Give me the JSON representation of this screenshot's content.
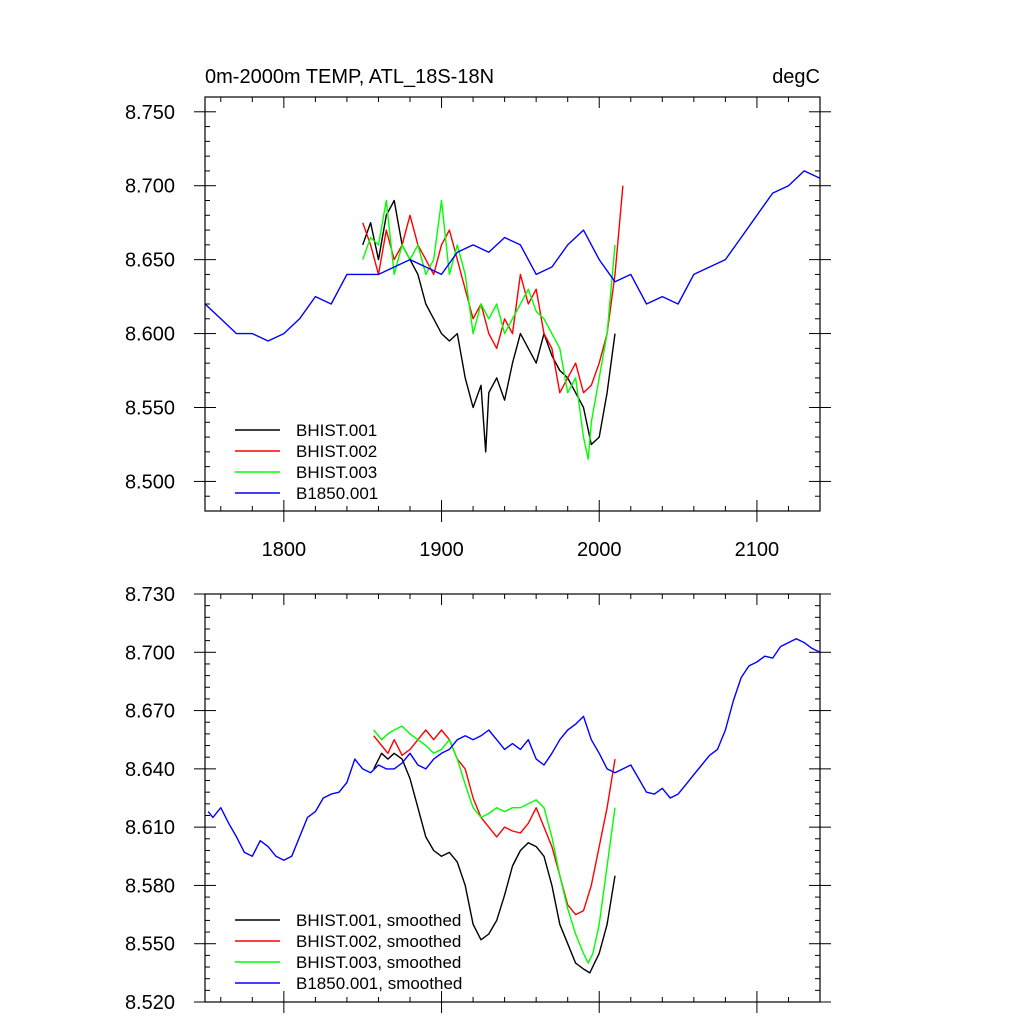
{
  "chart_data": [
    {
      "type": "line",
      "title": "0m-2000m TEMP, ATL_18S-18N",
      "units": "degC",
      "xlim": [
        1750,
        2140
      ],
      "ylim": [
        8.48,
        8.76
      ],
      "xticks": [
        1800,
        1900,
        2000,
        2100
      ],
      "xtick_labels": [
        "1800",
        "1900",
        "2000",
        "2100"
      ],
      "yticks": [
        8.5,
        8.55,
        8.6,
        8.65,
        8.7,
        8.75
      ],
      "ytick_labels": [
        "8.500",
        "8.550",
        "8.600",
        "8.650",
        "8.700",
        "8.750"
      ],
      "legend_position": "bottom-left",
      "series": [
        {
          "name": "BHIST.001",
          "color": "#000000",
          "x": [
            1850,
            1855,
            1860,
            1865,
            1870,
            1875,
            1880,
            1885,
            1890,
            1895,
            1900,
            1905,
            1910,
            1915,
            1920,
            1925,
            1928,
            1930,
            1935,
            1940,
            1945,
            1950,
            1955,
            1960,
            1965,
            1970,
            1975,
            1980,
            1985,
            1990,
            1995,
            2000,
            2005,
            2010
          ],
          "values": [
            8.66,
            8.675,
            8.65,
            8.68,
            8.69,
            8.66,
            8.65,
            8.64,
            8.62,
            8.61,
            8.6,
            8.595,
            8.6,
            8.57,
            8.55,
            8.565,
            8.52,
            8.56,
            8.57,
            8.555,
            8.58,
            8.6,
            8.59,
            8.58,
            8.6,
            8.585,
            8.575,
            8.57,
            8.56,
            8.55,
            8.525,
            8.53,
            8.56,
            8.6
          ]
        },
        {
          "name": "BHIST.002",
          "color": "#ff0000",
          "x": [
            1850,
            1855,
            1860,
            1865,
            1870,
            1875,
            1880,
            1885,
            1890,
            1895,
            1900,
            1905,
            1910,
            1915,
            1920,
            1925,
            1930,
            1935,
            1940,
            1945,
            1950,
            1955,
            1960,
            1965,
            1970,
            1975,
            1980,
            1985,
            1990,
            1995,
            2000,
            2005,
            2010,
            2015
          ],
          "values": [
            8.675,
            8.66,
            8.64,
            8.67,
            8.65,
            8.66,
            8.68,
            8.66,
            8.65,
            8.64,
            8.66,
            8.67,
            8.65,
            8.63,
            8.61,
            8.62,
            8.6,
            8.59,
            8.61,
            8.6,
            8.64,
            8.62,
            8.63,
            8.6,
            8.59,
            8.56,
            8.57,
            8.58,
            8.56,
            8.565,
            8.58,
            8.6,
            8.64,
            8.7
          ]
        },
        {
          "name": "BHIST.003",
          "color": "#00ff00",
          "x": [
            1850,
            1855,
            1860,
            1865,
            1870,
            1875,
            1880,
            1885,
            1890,
            1895,
            1900,
            1905,
            1910,
            1915,
            1920,
            1925,
            1930,
            1935,
            1940,
            1945,
            1950,
            1955,
            1960,
            1965,
            1970,
            1975,
            1980,
            1985,
            1990,
            1993,
            1995,
            2000,
            2005,
            2010
          ],
          "values": [
            8.65,
            8.665,
            8.66,
            8.69,
            8.64,
            8.66,
            8.65,
            8.66,
            8.64,
            8.65,
            8.69,
            8.64,
            8.66,
            8.64,
            8.6,
            8.62,
            8.61,
            8.62,
            8.6,
            8.61,
            8.62,
            8.63,
            8.615,
            8.61,
            8.6,
            8.59,
            8.56,
            8.57,
            8.53,
            8.515,
            8.54,
            8.57,
            8.6,
            8.66
          ]
        },
        {
          "name": "B1850.001",
          "color": "#0000ff",
          "x": [
            1750,
            1760,
            1770,
            1780,
            1790,
            1800,
            1810,
            1820,
            1830,
            1840,
            1850,
            1860,
            1870,
            1880,
            1890,
            1900,
            1910,
            1920,
            1930,
            1940,
            1950,
            1960,
            1970,
            1980,
            1990,
            2000,
            2010,
            2020,
            2030,
            2040,
            2050,
            2060,
            2070,
            2080,
            2090,
            2100,
            2110,
            2120,
            2130,
            2140
          ],
          "values": [
            8.62,
            8.61,
            8.6,
            8.6,
            8.595,
            8.6,
            8.61,
            8.625,
            8.62,
            8.64,
            8.64,
            8.64,
            8.645,
            8.65,
            8.645,
            8.64,
            8.655,
            8.66,
            8.655,
            8.665,
            8.66,
            8.64,
            8.645,
            8.66,
            8.67,
            8.65,
            8.635,
            8.64,
            8.62,
            8.625,
            8.62,
            8.64,
            8.645,
            8.65,
            8.665,
            8.68,
            8.695,
            8.7,
            8.71,
            8.705
          ]
        }
      ]
    },
    {
      "type": "line",
      "title": "",
      "xlim": [
        1750,
        2140
      ],
      "ylim": [
        8.52,
        8.73
      ],
      "xticks": [
        1800,
        1900,
        2000,
        2100
      ],
      "yticks": [
        8.52,
        8.55,
        8.58,
        8.61,
        8.64,
        8.67,
        8.7,
        8.73
      ],
      "ytick_labels": [
        "8.520",
        "8.550",
        "8.580",
        "8.610",
        "8.640",
        "8.670",
        "8.700",
        "8.730"
      ],
      "legend_position": "bottom-left",
      "series": [
        {
          "name": "BHIST.001, smoothed",
          "color": "#000000",
          "x": [
            1857,
            1862,
            1866,
            1870,
            1875,
            1880,
            1885,
            1890,
            1895,
            1900,
            1905,
            1910,
            1915,
            1920,
            1925,
            1930,
            1935,
            1940,
            1945,
            1950,
            1955,
            1960,
            1965,
            1970,
            1975,
            1980,
            1985,
            1990,
            1994,
            1997,
            2000,
            2005,
            2010
          ],
          "values": [
            8.64,
            8.648,
            8.645,
            8.648,
            8.645,
            8.635,
            8.62,
            8.605,
            8.598,
            8.595,
            8.597,
            8.592,
            8.58,
            8.56,
            8.552,
            8.555,
            8.562,
            8.575,
            8.59,
            8.598,
            8.602,
            8.6,
            8.595,
            8.58,
            8.56,
            8.55,
            8.54,
            8.537,
            8.535,
            8.54,
            8.545,
            8.56,
            8.585
          ]
        },
        {
          "name": "BHIST.002, smoothed",
          "color": "#ff0000",
          "x": [
            1857,
            1862,
            1866,
            1870,
            1875,
            1880,
            1885,
            1890,
            1895,
            1900,
            1905,
            1910,
            1915,
            1920,
            1925,
            1930,
            1935,
            1940,
            1945,
            1950,
            1955,
            1960,
            1965,
            1970,
            1975,
            1980,
            1985,
            1990,
            1995,
            2000,
            2005,
            2010
          ],
          "values": [
            8.657,
            8.652,
            8.648,
            8.655,
            8.647,
            8.65,
            8.655,
            8.66,
            8.655,
            8.66,
            8.655,
            8.645,
            8.64,
            8.625,
            8.615,
            8.61,
            8.605,
            8.61,
            8.608,
            8.607,
            8.612,
            8.62,
            8.61,
            8.6,
            8.585,
            8.57,
            8.565,
            8.567,
            8.58,
            8.6,
            8.62,
            8.645
          ]
        },
        {
          "name": "BHIST.003, smoothed",
          "color": "#00ff00",
          "x": [
            1857,
            1862,
            1866,
            1870,
            1875,
            1880,
            1885,
            1890,
            1895,
            1900,
            1905,
            1910,
            1915,
            1920,
            1925,
            1930,
            1935,
            1940,
            1945,
            1950,
            1955,
            1960,
            1965,
            1970,
            1975,
            1980,
            1985,
            1990,
            1993,
            1996,
            2000,
            2005,
            2010
          ],
          "values": [
            8.66,
            8.655,
            8.658,
            8.66,
            8.662,
            8.658,
            8.655,
            8.652,
            8.648,
            8.65,
            8.655,
            8.645,
            8.632,
            8.62,
            8.615,
            8.617,
            8.62,
            8.618,
            8.62,
            8.62,
            8.622,
            8.624,
            8.62,
            8.605,
            8.585,
            8.568,
            8.555,
            8.545,
            8.54,
            8.545,
            8.56,
            8.59,
            8.62
          ]
        },
        {
          "name": "B1850.001, smoothed",
          "color": "#0000ff",
          "x": [
            1752,
            1755,
            1760,
            1765,
            1770,
            1775,
            1780,
            1785,
            1790,
            1795,
            1800,
            1805,
            1810,
            1815,
            1820,
            1825,
            1830,
            1835,
            1840,
            1845,
            1850,
            1855,
            1860,
            1865,
            1870,
            1875,
            1880,
            1885,
            1890,
            1895,
            1900,
            1905,
            1910,
            1915,
            1920,
            1925,
            1930,
            1935,
            1940,
            1945,
            1950,
            1955,
            1960,
            1965,
            1970,
            1975,
            1980,
            1985,
            1990,
            1995,
            2000,
            2005,
            2010,
            2015,
            2020,
            2025,
            2030,
            2035,
            2040,
            2045,
            2050,
            2055,
            2060,
            2065,
            2070,
            2075,
            2080,
            2085,
            2090,
            2095,
            2100,
            2105,
            2110,
            2115,
            2120,
            2125,
            2130,
            2135,
            2140
          ],
          "values": [
            8.618,
            8.615,
            8.62,
            8.612,
            8.605,
            8.597,
            8.595,
            8.603,
            8.6,
            8.595,
            8.593,
            8.595,
            8.605,
            8.615,
            8.618,
            8.625,
            8.627,
            8.628,
            8.633,
            8.645,
            8.64,
            8.638,
            8.642,
            8.64,
            8.64,
            8.643,
            8.648,
            8.642,
            8.64,
            8.645,
            8.648,
            8.65,
            8.655,
            8.657,
            8.655,
            8.657,
            8.66,
            8.655,
            8.65,
            8.653,
            8.65,
            8.655,
            8.645,
            8.642,
            8.648,
            8.655,
            8.66,
            8.663,
            8.667,
            8.655,
            8.648,
            8.64,
            8.638,
            8.64,
            8.642,
            8.635,
            8.628,
            8.627,
            8.63,
            8.625,
            8.627,
            8.632,
            8.637,
            8.642,
            8.647,
            8.65,
            8.66,
            8.675,
            8.687,
            8.693,
            8.695,
            8.698,
            8.697,
            8.703,
            8.705,
            8.707,
            8.705,
            8.702,
            8.7
          ]
        }
      ]
    }
  ]
}
